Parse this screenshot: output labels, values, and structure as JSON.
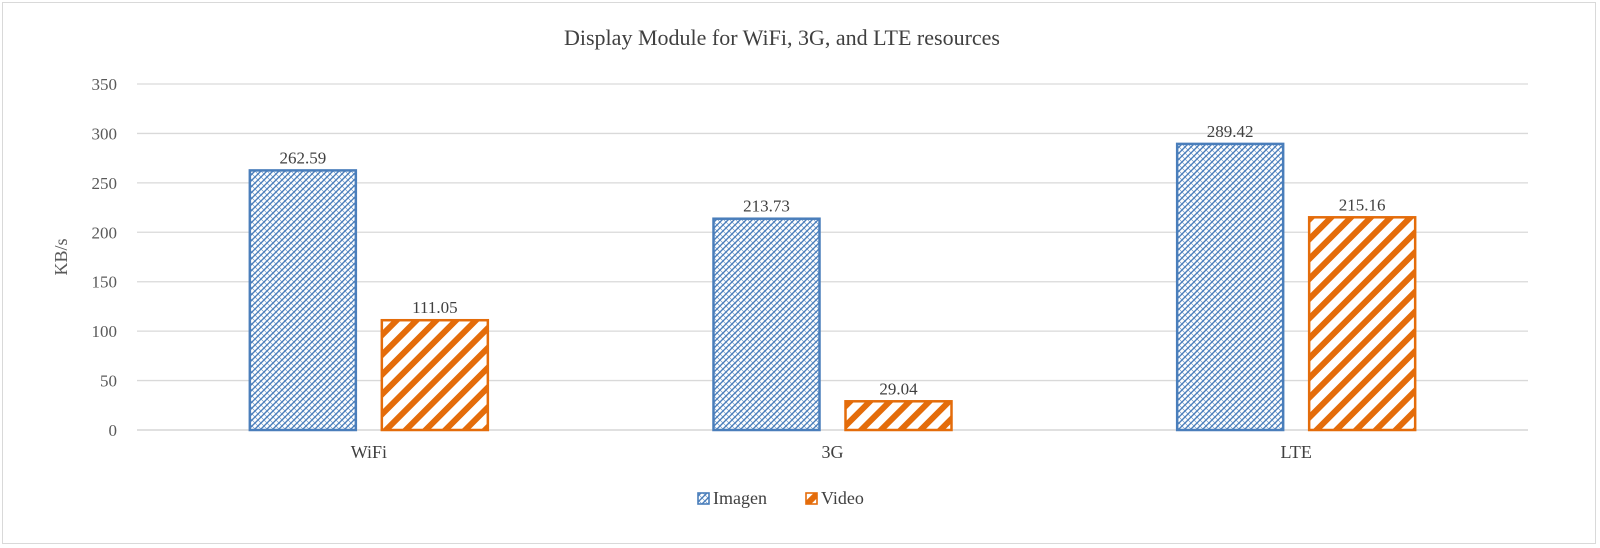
{
  "chart_data": {
    "type": "bar",
    "title": "Display Module for WiFi, 3G, and LTE resources",
    "ylabel": "KB/s",
    "xlabel": "",
    "categories": [
      "WiFi",
      "3G",
      "LTE"
    ],
    "series": [
      {
        "name": "Imagen",
        "values": [
          262.59,
          213.73,
          289.42
        ],
        "value_labels": [
          "262.59",
          "213.73",
          "289.42"
        ],
        "color": "#4a7ebb",
        "pattern": "diagonal-crosshatch"
      },
      {
        "name": "Video",
        "values": [
          111.05,
          29.04,
          215.16
        ],
        "value_labels": [
          "111.05",
          "29.04",
          "215.16"
        ],
        "color": "#e46c0a",
        "pattern": "wide-downward-diagonal"
      }
    ],
    "ylim": [
      0,
      350
    ],
    "yticks": [
      "0",
      "50",
      "100",
      "150",
      "200",
      "250",
      "300",
      "350"
    ],
    "grid": true,
    "legend_position": "bottom"
  }
}
